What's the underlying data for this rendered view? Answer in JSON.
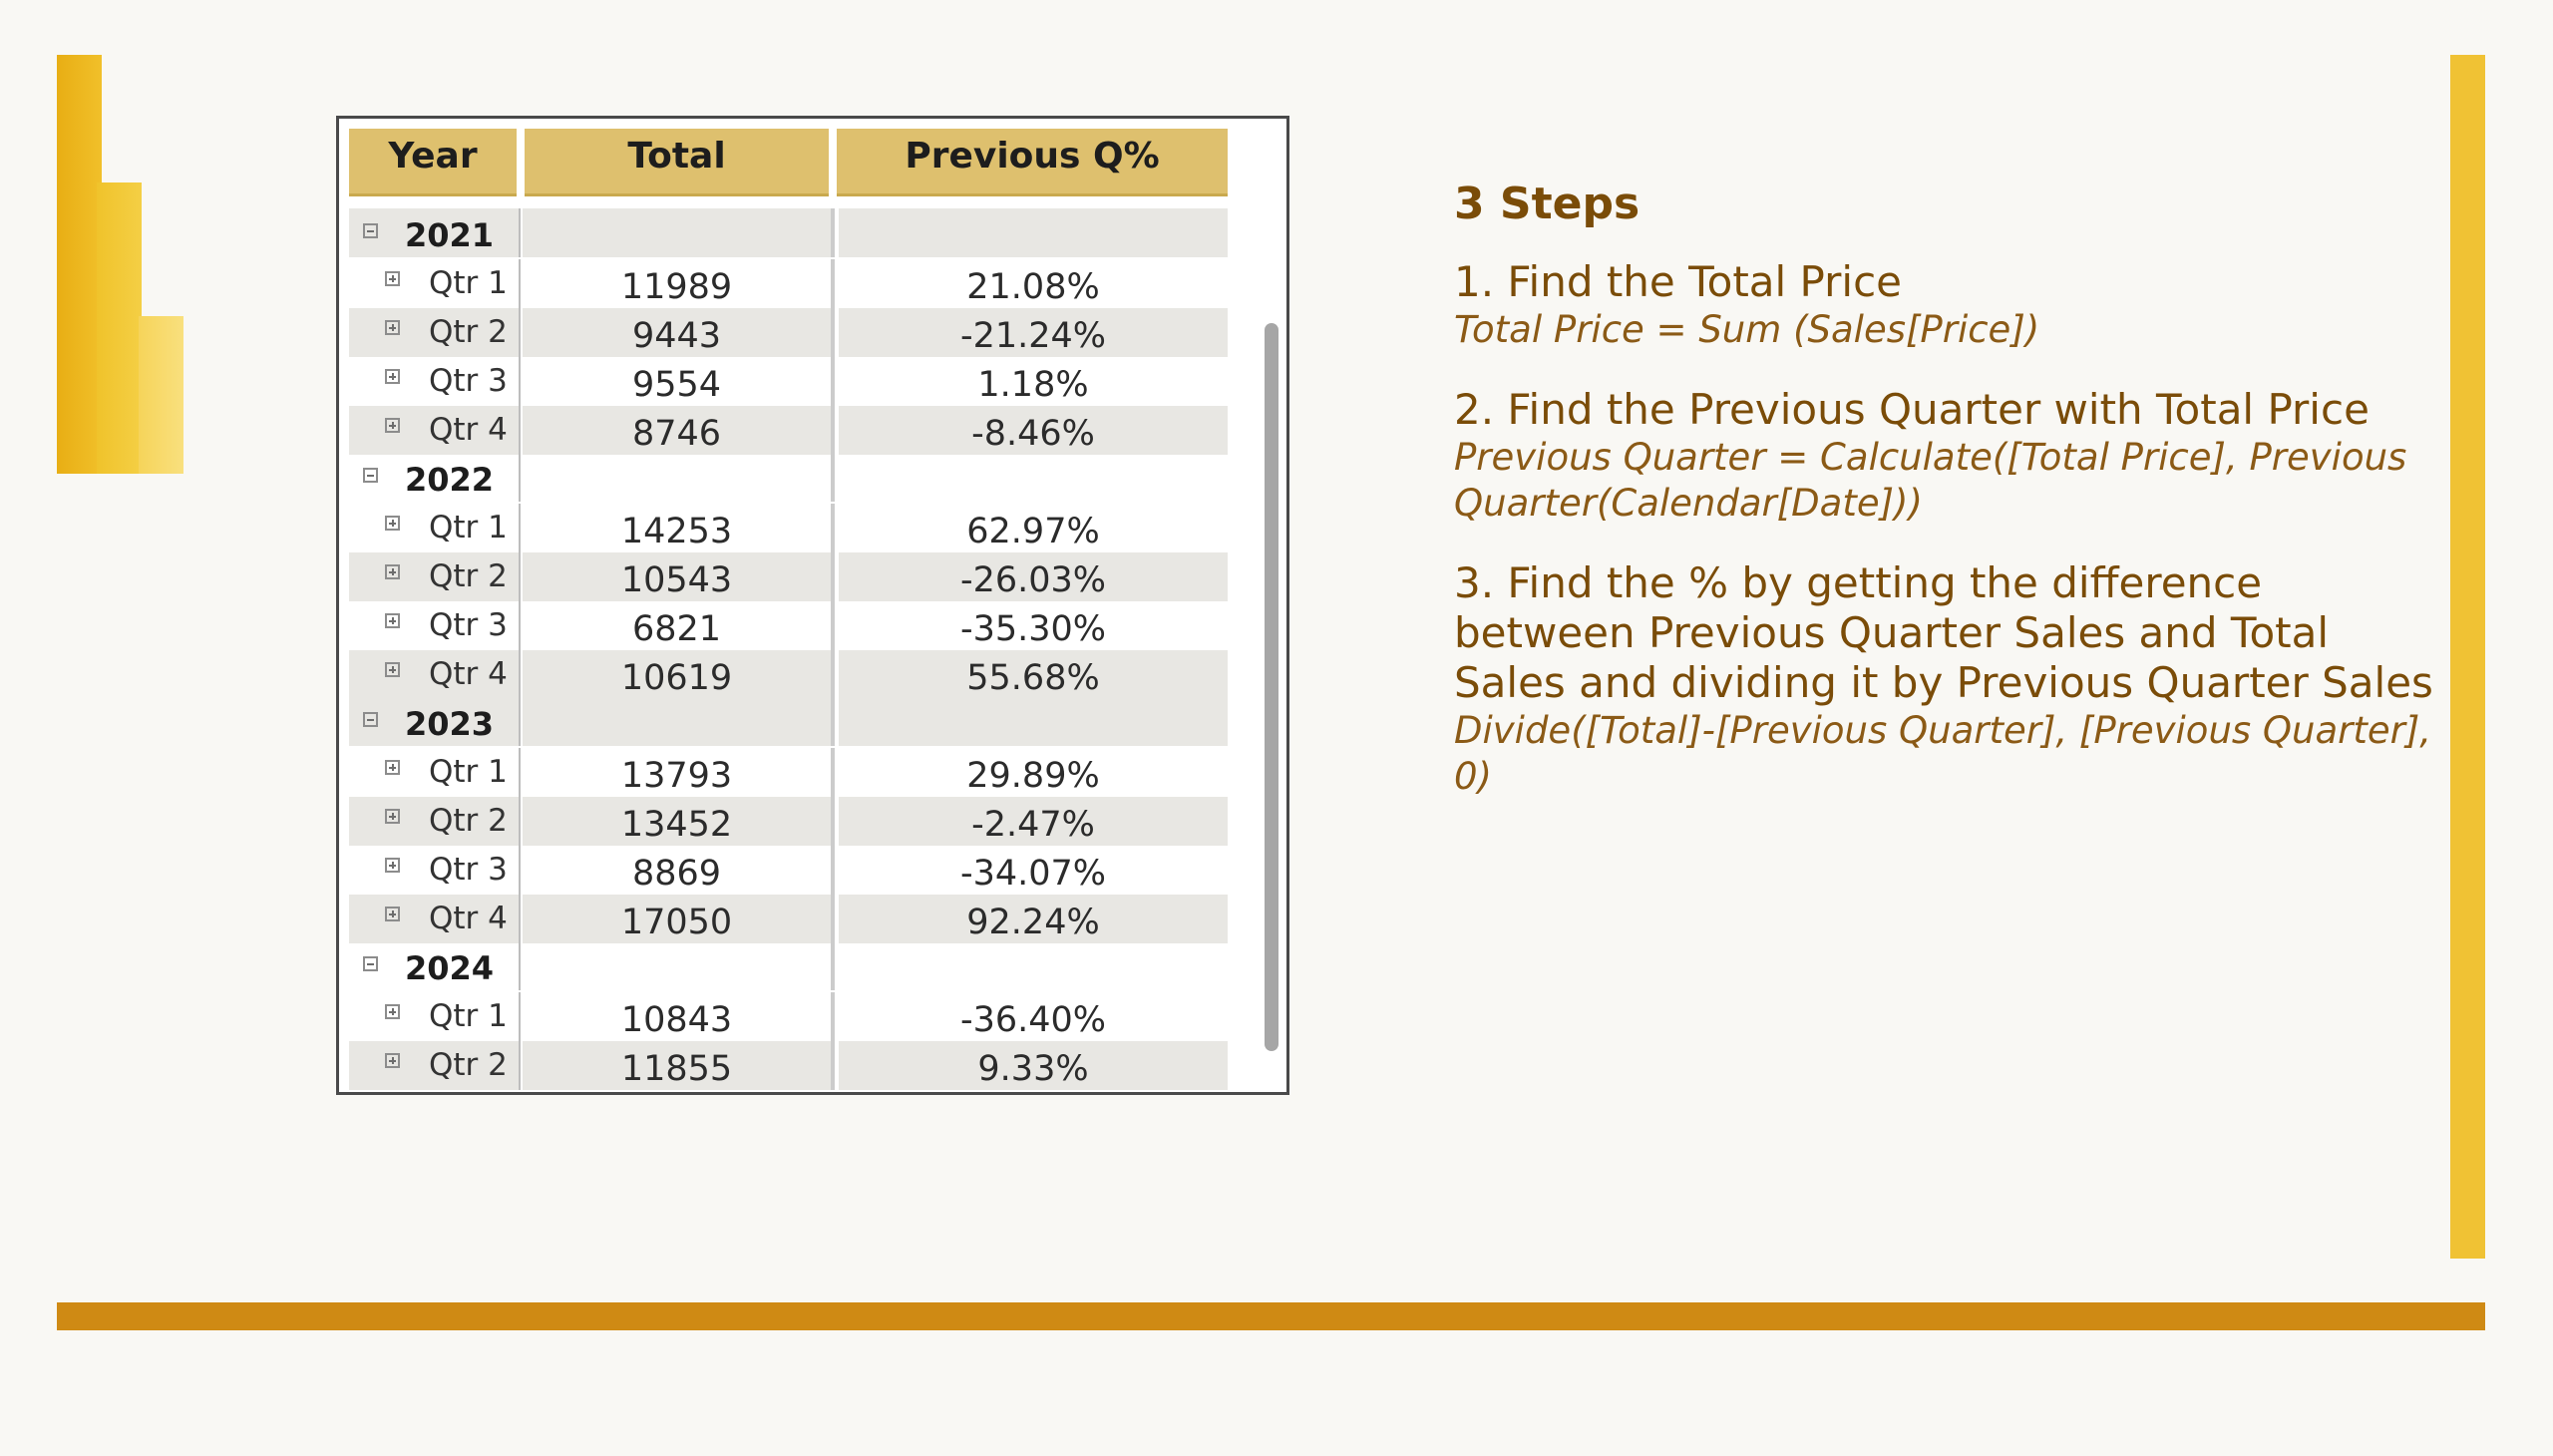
{
  "table": {
    "headers": {
      "year": "Year",
      "total": "Total",
      "prev": "Previous Q%"
    },
    "years": [
      {
        "year": "2021",
        "quarters": [
          {
            "label": "Qtr 1",
            "total": "11989",
            "prev": "21.08%"
          },
          {
            "label": "Qtr 2",
            "total": "9443",
            "prev": "-21.24%"
          },
          {
            "label": "Qtr 3",
            "total": "9554",
            "prev": "1.18%"
          },
          {
            "label": "Qtr 4",
            "total": "8746",
            "prev": "-8.46%"
          }
        ]
      },
      {
        "year": "2022",
        "quarters": [
          {
            "label": "Qtr 1",
            "total": "14253",
            "prev": "62.97%"
          },
          {
            "label": "Qtr 2",
            "total": "10543",
            "prev": "-26.03%"
          },
          {
            "label": "Qtr 3",
            "total": "6821",
            "prev": "-35.30%"
          },
          {
            "label": "Qtr 4",
            "total": "10619",
            "prev": "55.68%"
          }
        ]
      },
      {
        "year": "2023",
        "quarters": [
          {
            "label": "Qtr 1",
            "total": "13793",
            "prev": "29.89%"
          },
          {
            "label": "Qtr 2",
            "total": "13452",
            "prev": "-2.47%"
          },
          {
            "label": "Qtr 3",
            "total": "8869",
            "prev": "-34.07%"
          },
          {
            "label": "Qtr 4",
            "total": "17050",
            "prev": "92.24%"
          }
        ]
      },
      {
        "year": "2024",
        "quarters": [
          {
            "label": "Qtr 1",
            "total": "10843",
            "prev": "-36.40%"
          },
          {
            "label": "Qtr 2",
            "total": "11855",
            "prev": "9.33%"
          }
        ]
      }
    ]
  },
  "steps": {
    "title": "3 Steps",
    "items": [
      {
        "heading": "1. Find the Total Price",
        "formula": "Total Price = Sum (Sales[Price])"
      },
      {
        "heading": "2. Find the Previous Quarter with Total Price",
        "formula": "Previous Quarter = Calculate([Total Price], Previous Quarter(Calendar[Date]))"
      },
      {
        "heading": "3. Find the % by getting the difference between Previous Quarter Sales and Total Sales and dividing it by Previous Quarter Sales",
        "formula": "Divide([Total]-[Previous Quarter], [Previous Quarter], 0)"
      }
    ]
  },
  "colors": {
    "accent_gold": "#f0c234",
    "accent_orange": "#cf8a14",
    "header_fill": "#dec06e",
    "text_brown": "#7a4c08"
  }
}
